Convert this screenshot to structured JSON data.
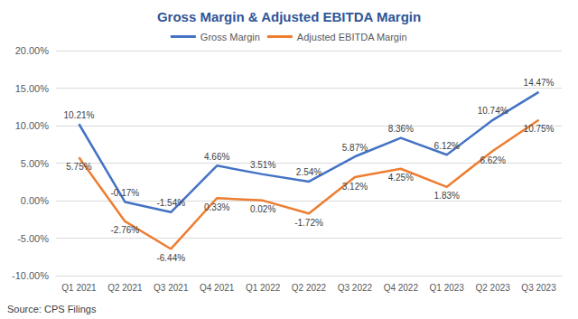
{
  "chart_data": {
    "type": "line",
    "title": "Gross Margin & Adjusted EBITDA Margin",
    "annotation": "Source: CPS Filings",
    "categories": [
      "Q1 2021",
      "Q2 2021",
      "Q3 2021",
      "Q4 2021",
      "Q1 2022",
      "Q2 2022",
      "Q3 2022",
      "Q4 2022",
      "Q1 2023",
      "Q2 2023",
      "Q3 2023"
    ],
    "series": [
      {
        "name": "Gross Margin",
        "color": "#4472c4",
        "values": [
          10.21,
          -0.17,
          -1.54,
          4.66,
          3.51,
          2.54,
          5.87,
          8.36,
          6.12,
          10.74,
          14.47
        ],
        "value_labels": [
          "10.21%",
          "-0.17%",
          "-1.54%",
          "4.66%",
          "3.51%",
          "2.54%",
          "5.87%",
          "8.36%",
          "6.12%",
          "10.74%",
          "14.47%"
        ]
      },
      {
        "name": "Adjusted EBITDA Margin",
        "color": "#ed7d31",
        "values": [
          5.75,
          -2.76,
          -6.44,
          0.33,
          0.02,
          -1.72,
          3.12,
          4.25,
          1.83,
          6.62,
          10.75
        ],
        "value_labels": [
          "5.75%",
          "-2.76%",
          "-6.44%",
          "0.33%",
          "0.02%",
          "-1.72%",
          "3.12%",
          "4.25%",
          "1.83%",
          "6.62%",
          "10.75%"
        ]
      }
    ],
    "ylim": [
      -10,
      20
    ],
    "yticks": [
      {
        "value": -10,
        "label": "-10.00%"
      },
      {
        "value": -5,
        "label": "-5.00%"
      },
      {
        "value": 0,
        "label": "0.00%"
      },
      {
        "value": 5,
        "label": "5.00%"
      },
      {
        "value": 10,
        "label": "10.00%"
      },
      {
        "value": 15,
        "label": "15.00%"
      },
      {
        "value": 20,
        "label": "20.00%"
      }
    ],
    "grid": true,
    "legend": "top",
    "data_labels": true
  }
}
